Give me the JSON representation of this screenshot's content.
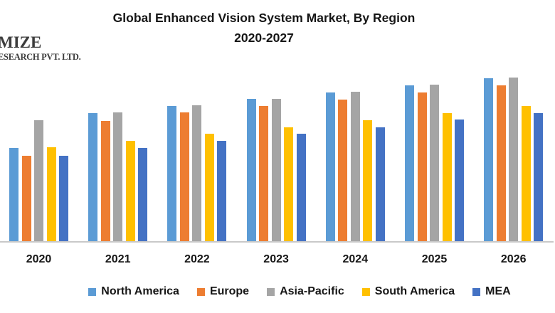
{
  "logo": {
    "line1": "MIZE",
    "line2": "ESEARCH PVT. LTD."
  },
  "title": {
    "line1": "Global Enhanced Vision System Market, By Region",
    "line2": "2020-2027"
  },
  "chart_data": {
    "type": "bar",
    "title": "Global Enhanced Vision System Market, By Region 2020-2027",
    "xlabel": "",
    "ylabel": "",
    "value_units": "relative height (no y-axis scale shown in image)",
    "ylim": [
      0,
      255
    ],
    "grid": false,
    "legend_position": "bottom",
    "axis_line_color": "#C9C9C9",
    "categories": [
      "2020",
      "2021",
      "2022",
      "2023",
      "2024",
      "2025",
      "2026"
    ],
    "series": [
      {
        "name": "North America",
        "color": "#5B9BD5",
        "values": [
          131,
          180,
          190,
          200,
          209,
          219,
          229
        ]
      },
      {
        "name": "Europe",
        "color": "#ED7D31",
        "values": [
          120,
          169,
          181,
          190,
          199,
          209,
          219
        ]
      },
      {
        "name": "Asia-Pacific",
        "color": "#A5A5A5",
        "values": [
          170,
          181,
          191,
          200,
          210,
          220,
          230
        ]
      },
      {
        "name": "South America",
        "color": "#FFC000",
        "values": [
          132,
          141,
          151,
          160,
          170,
          180,
          190
        ]
      },
      {
        "name": "MEA",
        "color": "#4472C4",
        "values": [
          120,
          131,
          141,
          151,
          160,
          171,
          180
        ]
      }
    ]
  }
}
